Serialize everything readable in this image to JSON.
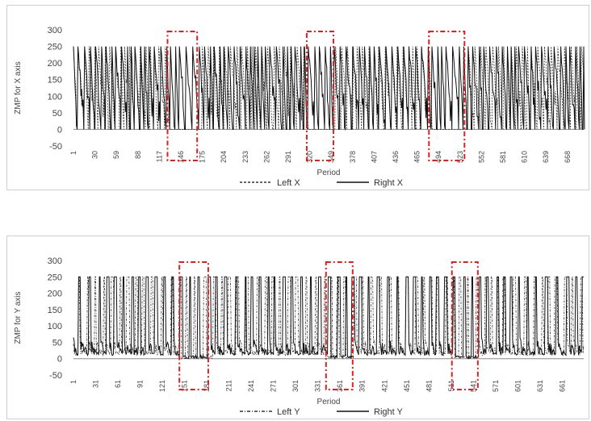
{
  "chart_data": [
    {
      "type": "line",
      "ylabel": "ZMP for X axis",
      "xlabel": "Period",
      "ylim": [
        -50,
        300
      ],
      "yticks": [
        -50,
        0,
        50,
        100,
        150,
        200,
        250,
        300
      ],
      "xticks": [
        "1",
        "30",
        "59",
        "88",
        "117",
        "146",
        "175",
        "204",
        "233",
        "262",
        "291",
        "320",
        "349",
        "378",
        "407",
        "436",
        "465",
        "494",
        "523",
        "552",
        "581",
        "610",
        "639",
        "668"
      ],
      "xrange": [
        1,
        690
      ],
      "series": [
        {
          "name": "Left X",
          "style": "dashed",
          "color": "#333333",
          "seed": 11,
          "level": 250,
          "mode": "x"
        },
        {
          "name": "Right X",
          "style": "solid",
          "color": "#111111",
          "seed": 23,
          "level": 250,
          "mode": "x"
        }
      ],
      "highlights": [
        [
          128,
          168
        ],
        [
          316,
          352
        ],
        [
          481,
          529
        ]
      ]
    },
    {
      "type": "line",
      "ylabel": "ZMP for Y axis",
      "xlabel": "Period",
      "ylim": [
        -50,
        300
      ],
      "yticks": [
        -50,
        0,
        50,
        100,
        150,
        200,
        250,
        300
      ],
      "xticks": [
        "1",
        "31",
        "61",
        "91",
        "121",
        "151",
        "181",
        "211",
        "241",
        "271",
        "301",
        "331",
        "361",
        "391",
        "421",
        "451",
        "481",
        "511",
        "541",
        "571",
        "601",
        "631",
        "661"
      ],
      "xrange": [
        1,
        690
      ],
      "series": [
        {
          "name": "Left Y",
          "style": "dashdot",
          "color": "#333333",
          "seed": 37,
          "level": 250,
          "mode": "y"
        },
        {
          "name": "Right Y",
          "style": "solid",
          "color": "#111111",
          "seed": 41,
          "level": 250,
          "mode": "y"
        }
      ],
      "highlights": [
        [
          144,
          183
        ],
        [
          342,
          378
        ],
        [
          512,
          547
        ]
      ]
    }
  ]
}
